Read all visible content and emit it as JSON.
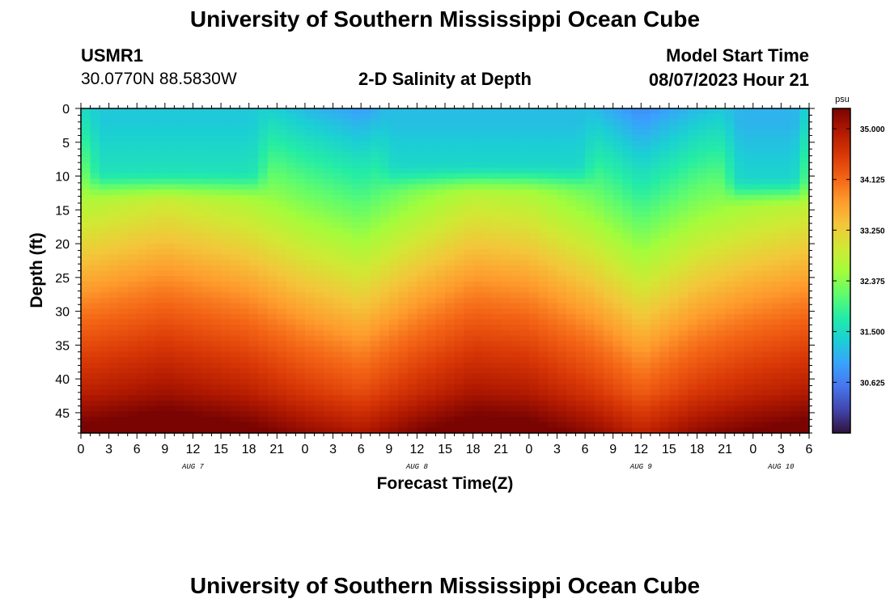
{
  "header": {
    "title": "University of Southern Mississippi Ocean Cube",
    "station": "USMR1",
    "coords": "30.0770N  88.5830W",
    "subtitle": "2-D Salinity at Depth",
    "model_start_label": "Model Start Time",
    "model_start_value": "08/07/2023 Hour 21"
  },
  "footer": {
    "title": "University of Southern Mississippi Ocean Cube"
  },
  "chart_data": {
    "type": "heatmap",
    "title": "2-D Salinity at Depth",
    "xlabel": "Forecast Time(Z)",
    "ylabel": "Depth (ft)",
    "x_hours_range": [
      0,
      78
    ],
    "ylim": [
      0,
      48
    ],
    "y_ticks": [
      "0",
      "5",
      "10",
      "15",
      "20",
      "25",
      "30",
      "35",
      "40",
      "45"
    ],
    "x_tick_labels": [
      "0",
      "3",
      "6",
      "9",
      "12",
      "15",
      "18",
      "21",
      "0",
      "3",
      "6",
      "9",
      "12",
      "15",
      "18",
      "21",
      "0",
      "3",
      "6",
      "9",
      "12",
      "15",
      "18",
      "21",
      "0",
      "3",
      "6"
    ],
    "day_labels": [
      {
        "label": "AUG 7",
        "hour": 12
      },
      {
        "label": "AUG 8",
        "hour": 36
      },
      {
        "label": "AUG 9",
        "hour": 60
      },
      {
        "label": "AUG 10",
        "hour": 75
      }
    ],
    "colorbar": {
      "unit": "psu",
      "range": [
        29.75,
        35.35
      ],
      "ticks": [
        "35.000",
        "34.125",
        "33.250",
        "32.375",
        "31.500",
        "30.625"
      ],
      "colors": [
        "#30123b",
        "#4145ab",
        "#4675ed",
        "#39a2fc",
        "#1bcfd4",
        "#24eca6",
        "#61fc6c",
        "#a4fc3b",
        "#d1e834",
        "#f3c63a",
        "#fe9b2d",
        "#f36315",
        "#d93806",
        "#b11901",
        "#7a0402"
      ]
    },
    "surface_layer": {
      "fresh_bands_hours": [
        [
          0.5,
          20
        ],
        [
          32,
          55
        ],
        [
          69,
          78
        ]
      ],
      "fresh_bottom_depth_ft": [
        10,
        9,
        11,
        10
      ],
      "surface_salinity_psu": [
        31.3,
        31.2,
        31.1,
        30.6
      ]
    },
    "isohaline_34_depth_ft": [
      {
        "hour": 0,
        "depth": 30
      },
      {
        "hour": 9,
        "depth": 27
      },
      {
        "hour": 18,
        "depth": 30
      },
      {
        "hour": 24,
        "depth": 34
      },
      {
        "hour": 30,
        "depth": 37
      },
      {
        "hour": 36,
        "depth": 32
      },
      {
        "hour": 42,
        "depth": 28
      },
      {
        "hour": 48,
        "depth": 29
      },
      {
        "hour": 55,
        "depth": 34
      },
      {
        "hour": 60,
        "depth": 39
      },
      {
        "hour": 66,
        "depth": 34
      },
      {
        "hour": 72,
        "depth": 31
      },
      {
        "hour": 78,
        "depth": 29
      }
    ]
  }
}
